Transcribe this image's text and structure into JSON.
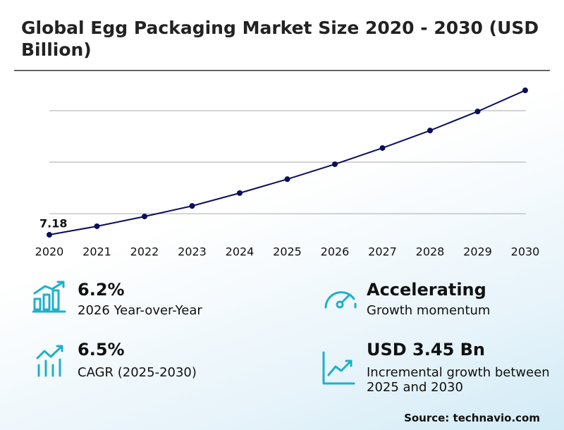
{
  "chart_data": {
    "type": "line",
    "title": "Global Egg Packaging Market Size 2020 - 2030 (USD Billion)",
    "categories": [
      "2020",
      "2021",
      "2022",
      "2023",
      "2024",
      "2025",
      "2026",
      "2027",
      "2028",
      "2029",
      "2030"
    ],
    "values": [
      7.18,
      7.51,
      7.89,
      8.3,
      8.8,
      9.34,
      9.92,
      10.55,
      11.23,
      11.97,
      12.79
    ],
    "color": "#0d0d5c",
    "ylim": [
      7,
      13
    ],
    "yticks": [
      8,
      10,
      12
    ],
    "grid": true
  },
  "kpis": [
    {
      "value": "6.2%",
      "label": "2026 Year-over-Year"
    },
    {
      "value": "Accelerating",
      "label": "Growth momentum"
    },
    {
      "value": "6.5%",
      "label": "CAGR (2025-2030)"
    },
    {
      "value": "USD 3.45 Bn",
      "label": "Incremental growth between 2025 and 2030"
    }
  ],
  "source": "Source: technavio.com"
}
